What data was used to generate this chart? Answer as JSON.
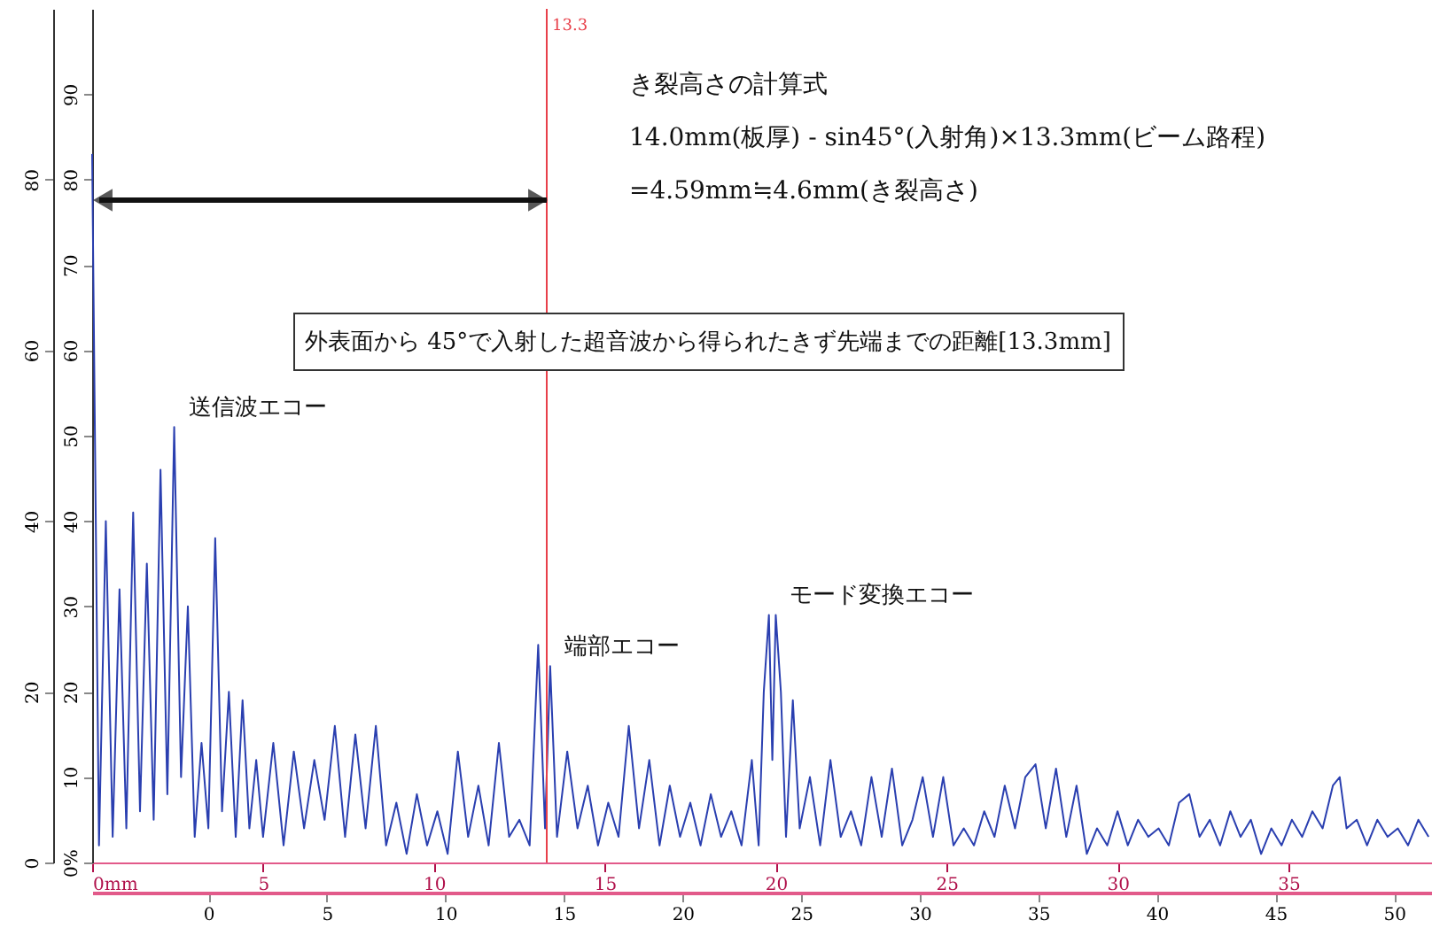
{
  "chart_data": {
    "type": "line",
    "xlim": [
      0,
      39.2
    ],
    "xticks": [
      {
        "value": 0,
        "label": "0mm"
      },
      5,
      10,
      15,
      20,
      25,
      30,
      35
    ],
    "x2lim": [
      -4.9,
      51.6
    ],
    "x2ticks": [
      0,
      5,
      10,
      15,
      20,
      25,
      30,
      35,
      40,
      45,
      50
    ],
    "ylim": [
      0,
      100
    ],
    "yticks": [
      {
        "value": 0,
        "label": "0%"
      },
      10,
      20,
      30,
      40,
      50,
      60,
      70,
      80,
      90
    ],
    "y2lim": [
      0,
      100
    ],
    "y2ticks": [
      0,
      20,
      40,
      60,
      80
    ],
    "x": [
      0,
      0.2,
      0.4,
      0.6,
      0.8,
      1.0,
      1.2,
      1.4,
      1.6,
      1.8,
      2.0,
      2.2,
      2.4,
      2.6,
      2.8,
      3.0,
      3.2,
      3.4,
      3.6,
      3.8,
      4.0,
      4.2,
      4.4,
      4.6,
      4.8,
      5.0,
      5.3,
      5.6,
      5.9,
      6.2,
      6.5,
      6.8,
      7.1,
      7.4,
      7.7,
      8.0,
      8.3,
      8.6,
      8.9,
      9.2,
      9.5,
      9.8,
      10.1,
      10.4,
      10.7,
      11.0,
      11.3,
      11.6,
      11.9,
      12.2,
      12.5,
      12.8,
      13.05,
      13.25,
      13.4,
      13.6,
      13.9,
      14.2,
      14.5,
      14.8,
      15.1,
      15.4,
      15.7,
      16.0,
      16.3,
      16.6,
      16.9,
      17.2,
      17.5,
      17.8,
      18.1,
      18.4,
      18.7,
      19.0,
      19.3,
      19.5,
      19.65,
      19.8,
      19.9,
      20.0,
      20.15,
      20.3,
      20.5,
      20.7,
      21.0,
      21.3,
      21.6,
      21.9,
      22.2,
      22.5,
      22.8,
      23.1,
      23.4,
      23.7,
      24.0,
      24.3,
      24.6,
      24.9,
      25.2,
      25.5,
      25.8,
      26.1,
      26.4,
      26.7,
      27.0,
      27.3,
      27.6,
      27.9,
      28.2,
      28.5,
      28.8,
      29.1,
      29.4,
      29.7,
      30.0,
      30.3,
      30.6,
      30.9,
      31.2,
      31.5,
      31.8,
      32.1,
      32.4,
      32.7,
      33.0,
      33.3,
      33.6,
      33.9,
      34.2,
      34.5,
      34.8,
      35.1,
      35.4,
      35.7,
      36.0,
      36.3,
      36.5,
      36.7,
      37.0,
      37.3,
      37.6,
      37.9,
      38.2,
      38.5,
      38.8,
      39.1
    ],
    "series": [
      {
        "color": "#2a3fb0",
        "values": [
          83,
          2,
          40,
          3,
          32,
          4,
          41,
          6,
          35,
          5,
          46,
          8,
          51,
          10,
          30,
          3,
          14,
          4,
          38,
          6,
          20,
          3,
          19,
          4,
          12,
          3,
          14,
          2,
          13,
          4,
          12,
          5,
          16,
          3,
          15,
          4,
          16,
          2,
          7,
          1,
          8,
          2,
          6,
          1,
          13,
          3,
          9,
          2,
          14,
          3,
          5,
          2,
          25.5,
          4,
          23,
          3,
          13,
          4,
          9,
          2,
          7,
          3,
          16,
          4,
          12,
          2,
          9,
          3,
          7,
          2,
          8,
          3,
          6,
          2,
          12,
          2,
          20,
          29,
          12,
          29,
          20,
          3,
          19,
          4,
          10,
          2,
          12,
          3,
          6,
          2,
          10,
          3,
          11,
          2,
          5,
          10,
          3,
          10,
          2,
          4,
          2,
          6,
          3,
          9,
          4,
          10,
          11.5,
          4,
          11,
          3,
          9,
          1,
          4,
          2,
          6,
          2,
          5,
          3,
          4,
          2,
          7,
          8,
          3,
          5,
          2,
          6,
          3,
          5,
          1,
          4,
          2,
          5,
          3,
          6,
          4,
          9,
          10,
          4,
          5,
          2,
          5,
          3,
          4,
          2,
          5,
          3
        ]
      }
    ],
    "ref_lines": [
      {
        "axis": "x",
        "value": 13.3,
        "label": "13.3",
        "color": "#e8404a"
      }
    ],
    "annotations": [
      "き裂高さの計算式",
      "14.0mm(板厚) - sin45°(入射角)×13.3mm(ビーム路程)",
      "=4.59mm≒4.6mm(き裂高さ)",
      "外表面から 45°で入射した超音波から得られたきず先端までの距離[13.3mm]",
      {
        "text": "送信波エコー",
        "x": 2.4,
        "y": 51
      },
      {
        "text": "端部エコー",
        "x": 13.4,
        "y": 23
      },
      {
        "text": "モード変換エコー",
        "x": 20.0,
        "y": 29
      }
    ],
    "grid": false
  }
}
